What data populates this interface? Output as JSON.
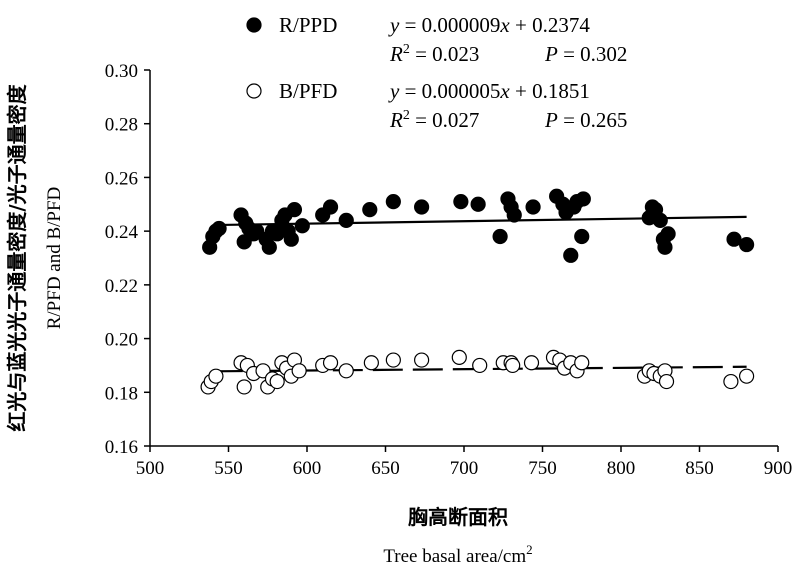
{
  "chart_data": {
    "type": "scatter",
    "xlim": [
      500,
      900
    ],
    "ylim": [
      0.16,
      0.3
    ],
    "x_ticks": [
      "500",
      "550",
      "600",
      "650",
      "700",
      "750",
      "800",
      "850",
      "900"
    ],
    "y_ticks": [
      "0.16",
      "0.18",
      "0.20",
      "0.22",
      "0.24",
      "0.26",
      "0.28",
      "0.30"
    ],
    "xlabel_cn": "胸高断面积",
    "xlabel_en": "Tree basal area/cm",
    "xlabel_en_sup": "2",
    "ylabel_cn": "红光与蓝光光子通量密度/光子通量密度",
    "ylabel_en": "R/PFD and B/PFD",
    "grid": false,
    "legend_position": "top",
    "series": [
      {
        "name": "R/PPD",
        "marker": "filled-circle",
        "color": "#000000",
        "equation": {
          "y": "y",
          "eq_rest": " = 0.000009",
          "x": "x",
          "eq_tail": " + 0.2374"
        },
        "stats": {
          "r": "R",
          "r_sup": "2",
          "r_val": " = 0.023",
          "p": "P",
          "p_val": " = 0.302"
        },
        "trend": {
          "slope": 9e-06,
          "intercept": 0.2374,
          "x_range": [
            540,
            880
          ],
          "style": "solid"
        },
        "points": [
          [
            538,
            0.234
          ],
          [
            540,
            0.238
          ],
          [
            542,
            0.24
          ],
          [
            544,
            0.241
          ],
          [
            558,
            0.246
          ],
          [
            560,
            0.236
          ],
          [
            561,
            0.243
          ],
          [
            563,
            0.241
          ],
          [
            566,
            0.239
          ],
          [
            568,
            0.24
          ],
          [
            574,
            0.237
          ],
          [
            576,
            0.234
          ],
          [
            578,
            0.24
          ],
          [
            581,
            0.239
          ],
          [
            584,
            0.244
          ],
          [
            586,
            0.246
          ],
          [
            588,
            0.24
          ],
          [
            590,
            0.237
          ],
          [
            592,
            0.248
          ],
          [
            597,
            0.242
          ],
          [
            610,
            0.246
          ],
          [
            615,
            0.249
          ],
          [
            625,
            0.244
          ],
          [
            640,
            0.248
          ],
          [
            655,
            0.251
          ],
          [
            673,
            0.249
          ],
          [
            698,
            0.251
          ],
          [
            709,
            0.25
          ],
          [
            723,
            0.238
          ],
          [
            728,
            0.252
          ],
          [
            730,
            0.249
          ],
          [
            732,
            0.246
          ],
          [
            744,
            0.249
          ],
          [
            759,
            0.253
          ],
          [
            763,
            0.25
          ],
          [
            765,
            0.247
          ],
          [
            768,
            0.231
          ],
          [
            770,
            0.249
          ],
          [
            772,
            0.251
          ],
          [
            775,
            0.238
          ],
          [
            776,
            0.252
          ],
          [
            818,
            0.245
          ],
          [
            820,
            0.249
          ],
          [
            821,
            0.246
          ],
          [
            822,
            0.248
          ],
          [
            825,
            0.244
          ],
          [
            827,
            0.237
          ],
          [
            828,
            0.234
          ],
          [
            830,
            0.239
          ],
          [
            872,
            0.237
          ],
          [
            880,
            0.235
          ]
        ]
      },
      {
        "name": "B/PFD",
        "marker": "open-circle",
        "color": "#000000",
        "equation": {
          "y": "y",
          "eq_rest": " = 0.000005",
          "x": "x",
          "eq_tail": " + 0.1851"
        },
        "stats": {
          "r": "R",
          "r_sup": "2",
          "r_val": " = 0.027",
          "p": "P",
          "p_val": " = 0.265"
        },
        "trend": {
          "slope": 5e-06,
          "intercept": 0.1851,
          "x_range": [
            540,
            880
          ],
          "style": "dashed"
        },
        "points": [
          [
            537,
            0.182
          ],
          [
            539,
            0.184
          ],
          [
            542,
            0.186
          ],
          [
            558,
            0.191
          ],
          [
            560,
            0.182
          ],
          [
            562,
            0.19
          ],
          [
            566,
            0.187
          ],
          [
            572,
            0.188
          ],
          [
            575,
            0.182
          ],
          [
            578,
            0.185
          ],
          [
            581,
            0.184
          ],
          [
            584,
            0.191
          ],
          [
            587,
            0.189
          ],
          [
            590,
            0.186
          ],
          [
            592,
            0.192
          ],
          [
            595,
            0.188
          ],
          [
            610,
            0.19
          ],
          [
            615,
            0.191
          ],
          [
            625,
            0.188
          ],
          [
            641,
            0.191
          ],
          [
            655,
            0.192
          ],
          [
            673,
            0.192
          ],
          [
            697,
            0.193
          ],
          [
            710,
            0.19
          ],
          [
            725,
            0.191
          ],
          [
            730,
            0.191
          ],
          [
            731,
            0.19
          ],
          [
            743,
            0.191
          ],
          [
            757,
            0.193
          ],
          [
            761,
            0.192
          ],
          [
            764,
            0.189
          ],
          [
            768,
            0.191
          ],
          [
            772,
            0.188
          ],
          [
            775,
            0.191
          ],
          [
            815,
            0.186
          ],
          [
            818,
            0.188
          ],
          [
            821,
            0.187
          ],
          [
            825,
            0.186
          ],
          [
            828,
            0.188
          ],
          [
            829,
            0.184
          ],
          [
            870,
            0.184
          ],
          [
            880,
            0.186
          ]
        ]
      }
    ]
  }
}
